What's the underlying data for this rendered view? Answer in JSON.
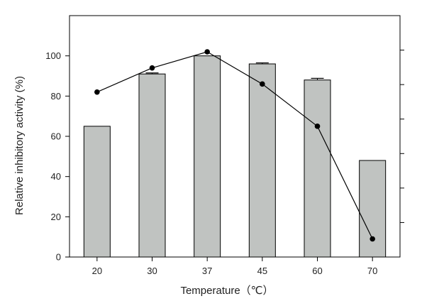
{
  "chart_data": {
    "type": "bar",
    "title": "",
    "xlabel": "Temperature（℃）",
    "ylabel": "Relative inhibitory activity (%)",
    "categories": [
      "20",
      "30",
      "37",
      "45",
      "60",
      "70"
    ],
    "ylim": [
      0,
      120
    ],
    "yticks": [
      "0",
      "20",
      "40",
      "60",
      "80",
      "100"
    ],
    "right_axis_ticks": 6,
    "grid": false,
    "legend": "none",
    "series": [
      {
        "kind": "bar",
        "values": [
          65,
          91,
          100,
          96,
          88,
          48
        ],
        "errors": [
          0,
          0.5,
          0,
          0.5,
          0.8,
          0
        ],
        "color": "#c0c3c1"
      },
      {
        "kind": "line",
        "values": [
          82,
          94,
          102,
          86,
          65,
          9
        ],
        "color": "#000000"
      }
    ]
  }
}
